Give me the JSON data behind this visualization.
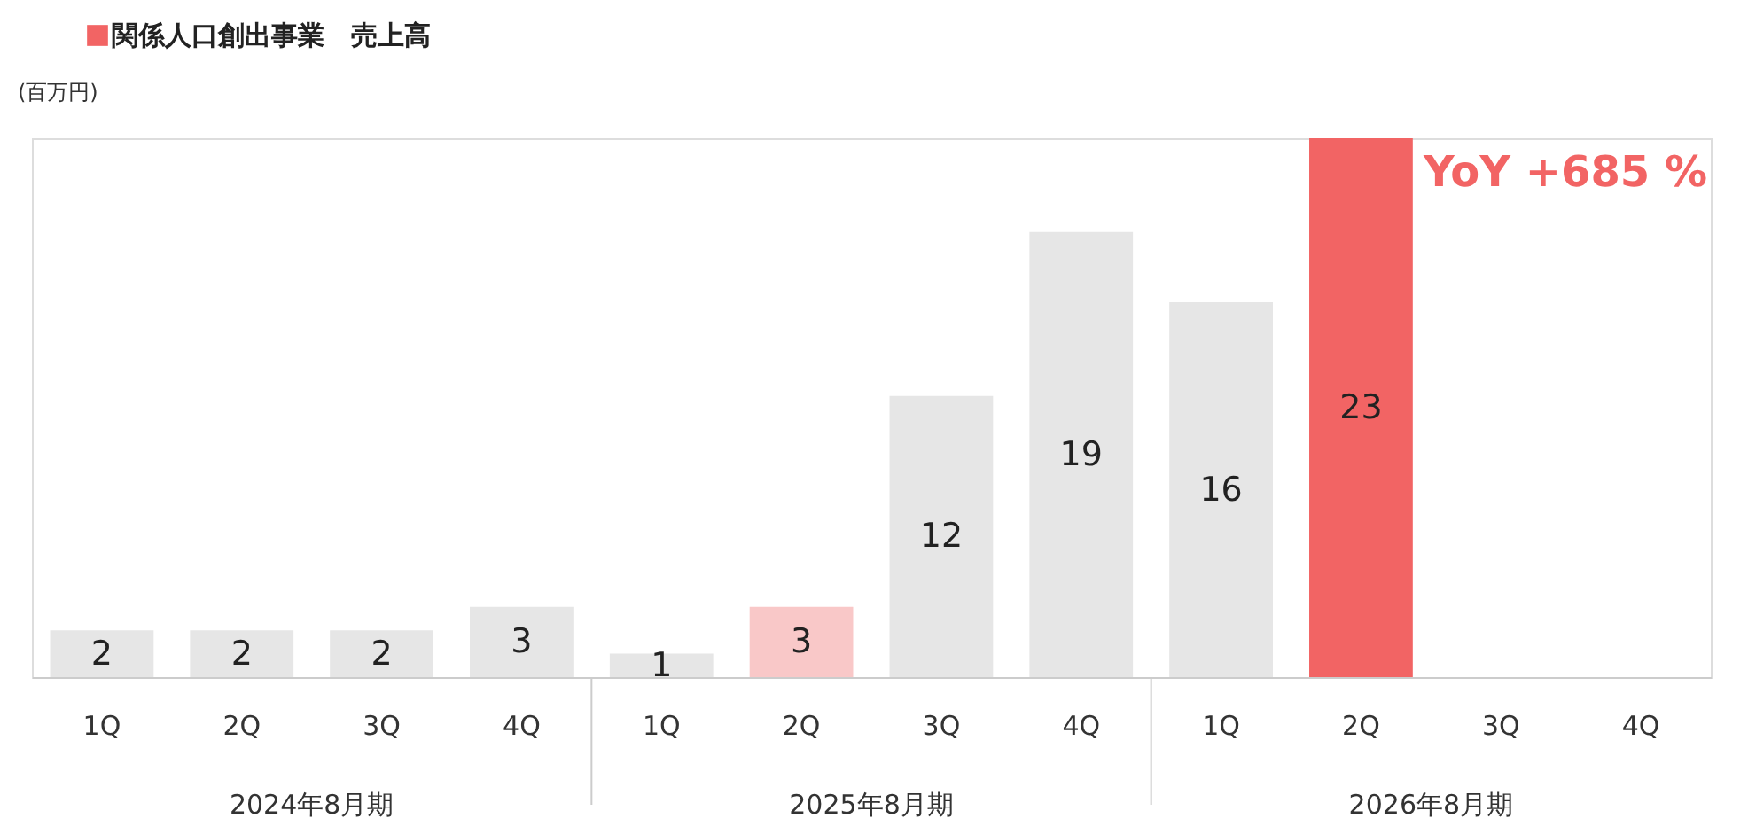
{
  "chart_data": {
    "type": "bar",
    "ylabel": "(百万円)",
    "categories": [
      "1Q",
      "2Q",
      "3Q",
      "4Q",
      "1Q",
      "2Q",
      "3Q",
      "4Q",
      "1Q",
      "2Q",
      "3Q",
      "4Q"
    ],
    "series": [
      {
        "name": "関係人口創出事業　売上高",
        "color": "#f26464",
        "values": [
          2,
          2,
          2,
          3,
          1,
          3,
          12,
          19,
          16,
          23,
          null,
          null
        ],
        "colors": [
          "#e6e6e6",
          "#e6e6e6",
          "#e6e6e6",
          "#e6e6e6",
          "#e6e6e6",
          "#f9c8c8",
          "#e6e6e6",
          "#e6e6e6",
          "#e6e6e6",
          "#f26464",
          "#e6e6e6",
          "#e6e6e6"
        ]
      }
    ],
    "data_labels": true,
    "legend": "top left",
    "annotations": [
      "2024年8月期",
      "2025年8月期",
      "2026年8月期",
      "YoY +685 %"
    ]
  }
}
